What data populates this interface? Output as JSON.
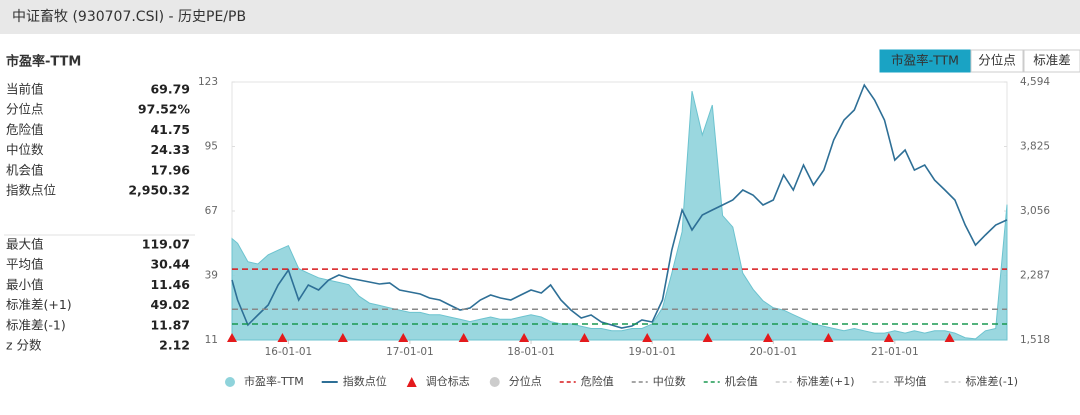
{
  "header": {
    "title": "中证畜牧 (930707.CSI) - 历史PE/PB"
  },
  "panel": {
    "title": "市盈率-TTM",
    "stats_1": [
      [
        "当前值",
        "69.79"
      ],
      [
        "分位点",
        "97.52%"
      ],
      [
        "危险值",
        "41.75"
      ],
      [
        "中位数",
        "24.33"
      ],
      [
        "机会值",
        "17.96"
      ],
      [
        "指数点位",
        "2,950.32"
      ]
    ],
    "stats_2": [
      [
        "最大值",
        "119.07"
      ],
      [
        "平均值",
        "30.44"
      ],
      [
        "最小值",
        "11.46"
      ],
      [
        "标准差(+1)",
        "49.02"
      ],
      [
        "标准差(-1)",
        "11.87"
      ],
      [
        "z 分数",
        "2.12"
      ]
    ]
  },
  "tabs": [
    "市盈率-TTM",
    "分位点",
    "标准差"
  ],
  "chart_data": {
    "type": "line",
    "x": [
      "15-07-15",
      "15-08-01",
      "15-09-01",
      "15-10-01",
      "15-11-01",
      "15-12-01",
      "16-01-01",
      "16-02-01",
      "16-03-01",
      "16-04-01",
      "16-05-01",
      "16-06-01",
      "16-07-01",
      "16-08-01",
      "16-09-01",
      "16-10-01",
      "16-11-01",
      "16-12-01",
      "17-01-01",
      "17-02-01",
      "17-03-01",
      "17-04-01",
      "17-05-01",
      "17-06-01",
      "17-07-01",
      "17-08-01",
      "17-09-01",
      "17-10-01",
      "17-11-01",
      "17-12-01",
      "18-01-01",
      "18-02-01",
      "18-03-01",
      "18-04-01",
      "18-05-01",
      "18-06-01",
      "18-07-01",
      "18-08-01",
      "18-09-01",
      "18-10-01",
      "18-11-01",
      "18-12-01",
      "19-01-01",
      "19-02-01",
      "19-03-01",
      "19-04-01",
      "19-05-01",
      "19-06-01",
      "19-07-01",
      "19-08-01",
      "19-09-01",
      "19-10-01",
      "19-11-01",
      "19-12-01",
      "20-01-01",
      "20-02-01",
      "20-03-01",
      "20-04-01",
      "20-05-01",
      "20-06-01",
      "20-07-01",
      "20-08-01",
      "20-09-01",
      "20-10-01",
      "20-11-01",
      "20-12-01",
      "21-01-01",
      "21-02-01",
      "21-03-01",
      "21-04-01",
      "21-05-01",
      "21-06-01",
      "21-07-01",
      "21-08-01",
      "21-09-01",
      "21-10-01",
      "21-11-01",
      "21-12-05"
    ],
    "series": [
      {
        "name": "市盈率-TTM",
        "style": "area",
        "color": "#8fd3db",
        "values": [
          55,
          53,
          45,
          44,
          48,
          50,
          52,
          42,
          40,
          38,
          37,
          36,
          35,
          30,
          27,
          26,
          25,
          24,
          23,
          23,
          22,
          22,
          21,
          20,
          19,
          20,
          21,
          20,
          20,
          21,
          22,
          21,
          19,
          18,
          18,
          17,
          16,
          16,
          15,
          15,
          16,
          16,
          18,
          25,
          40,
          58,
          119.07,
          100,
          113,
          65,
          60,
          40,
          33,
          28,
          25,
          24,
          22,
          20,
          18,
          17,
          16,
          15,
          16,
          15,
          14,
          14,
          15,
          14,
          15,
          14,
          15,
          15,
          14,
          12,
          11.46,
          15,
          16,
          69.79
        ]
      },
      {
        "name": "指数点位",
        "style": "line",
        "axis": "y2",
        "color": "#2e6f96",
        "values": [
          2233,
          1995,
          1697,
          1816,
          1935,
          2174,
          2352,
          1995,
          2174,
          2114,
          2233,
          2293,
          2257,
          2233,
          2210,
          2186,
          2198,
          2114,
          2090,
          2066,
          2019,
          1995,
          1935,
          1876,
          1900,
          1995,
          2054,
          2019,
          1995,
          2054,
          2114,
          2078,
          2174,
          1995,
          1876,
          1780,
          1816,
          1733,
          1697,
          1661,
          1685,
          1756,
          1733,
          1995,
          2591,
          3068,
          2829,
          3008,
          3068,
          3127,
          3187,
          3306,
          3246,
          3127,
          3187,
          3485,
          3306,
          3604,
          3366,
          3544,
          3902,
          4140,
          4260,
          4558,
          4379,
          4140,
          3663,
          3783,
          3544,
          3604,
          3425,
          3306,
          3187,
          2889,
          2650,
          2770,
          2889,
          2950.32
        ]
      }
    ],
    "markers": {
      "name": "调仓标志",
      "color": "#e41a1c",
      "x": [
        "15-07-15",
        "15-12-14",
        "16-06-13",
        "16-12-12",
        "17-06-12",
        "17-12-11",
        "18-06-11",
        "18-12-17",
        "19-06-17",
        "19-12-16",
        "20-06-15",
        "20-12-14",
        "21-06-15"
      ]
    },
    "hidden_series": [
      {
        "name": "分位点",
        "color": "#cccccc"
      }
    ],
    "reference_lines": [
      {
        "name": "危险值",
        "value": 41.75,
        "color": "#d7191c",
        "visible": true
      },
      {
        "name": "中位数",
        "value": 24.33,
        "color": "#888888",
        "visible": true
      },
      {
        "name": "机会值",
        "value": 17.96,
        "color": "#1a9850",
        "visible": true
      },
      {
        "name": "标准差(+1)",
        "color": "#cccccc",
        "visible": false
      },
      {
        "name": "平均值",
        "color": "#cccccc",
        "visible": false
      },
      {
        "name": "标准差(-1)",
        "color": "#cccccc",
        "visible": false
      }
    ],
    "xlim": [
      "15-07-15",
      "21-12-05"
    ],
    "xticks": [
      "16-01-01",
      "17-01-01",
      "18-01-01",
      "19-01-01",
      "20-01-01",
      "21-01-01"
    ],
    "ylim": [
      11,
      123
    ],
    "yticks": [
      11,
      39,
      67,
      95,
      123
    ],
    "y2lim": [
      1518,
      4594
    ],
    "y2ticks": [
      {
        "value": 1518,
        "label": "1,518"
      },
      {
        "value": 2287,
        "label": "2,287"
      },
      {
        "value": 3056,
        "label": "3,056"
      },
      {
        "value": 3825,
        "label": "3,825"
      },
      {
        "value": 4594,
        "label": "4,594"
      }
    ],
    "grid": false
  }
}
